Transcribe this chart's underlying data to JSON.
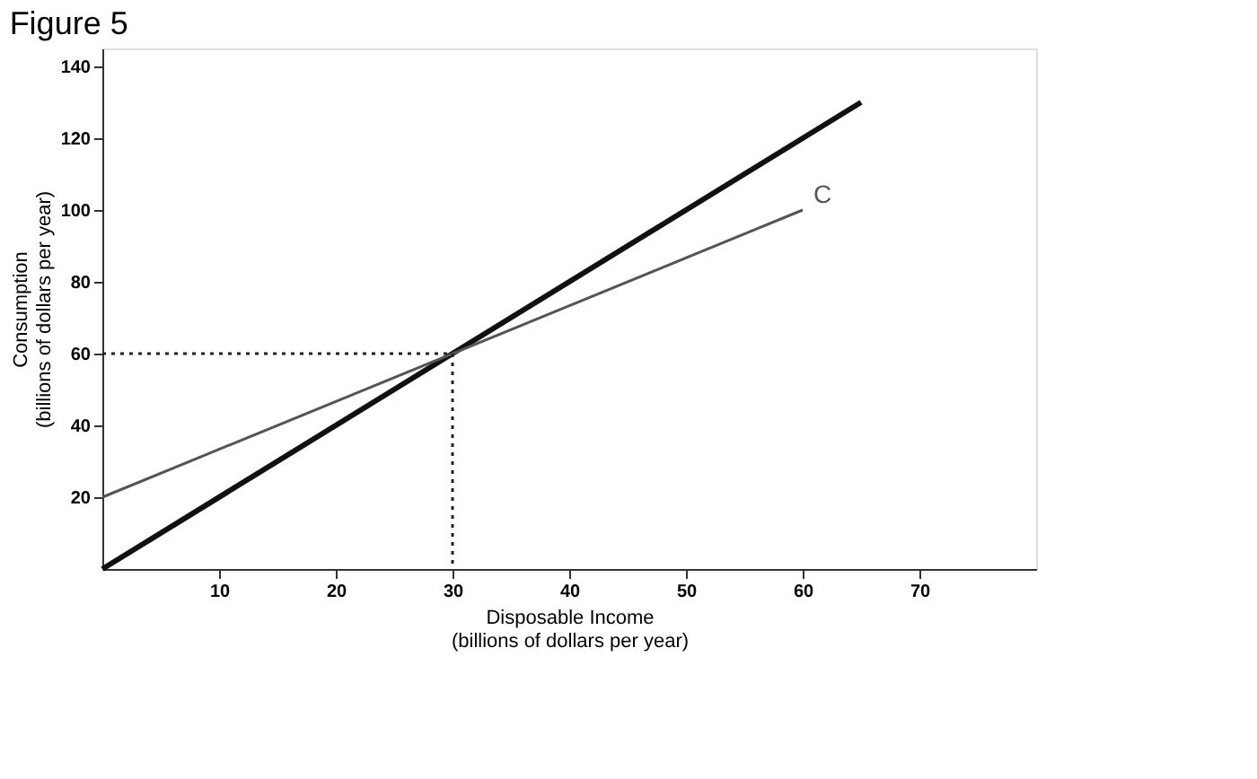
{
  "chart_data": {
    "type": "line",
    "title": "Figure 5",
    "xlabel": "Disposable Income\n(billions of dollars per year)",
    "ylabel": "Consumption\n(billions of dollars per year)",
    "xlim": [
      0,
      80
    ],
    "ylim": [
      0,
      145
    ],
    "xticks": [
      10,
      20,
      30,
      40,
      50,
      60,
      70
    ],
    "yticks": [
      20,
      40,
      60,
      80,
      100,
      120,
      140
    ],
    "grid": false,
    "marker": "none",
    "series": [
      {
        "x": [
          0,
          65
        ],
        "values": [
          0,
          130
        ],
        "color": "#111111",
        "line_style": "solid"
      },
      {
        "name": "C",
        "x": [
          0,
          60
        ],
        "values": [
          20,
          100
        ],
        "color": "#555555",
        "line_style": "solid"
      },
      {
        "x": [
          0,
          30,
          30
        ],
        "values": [
          60,
          60,
          0
        ],
        "color": "#222222",
        "line_style": "dotted"
      }
    ]
  }
}
